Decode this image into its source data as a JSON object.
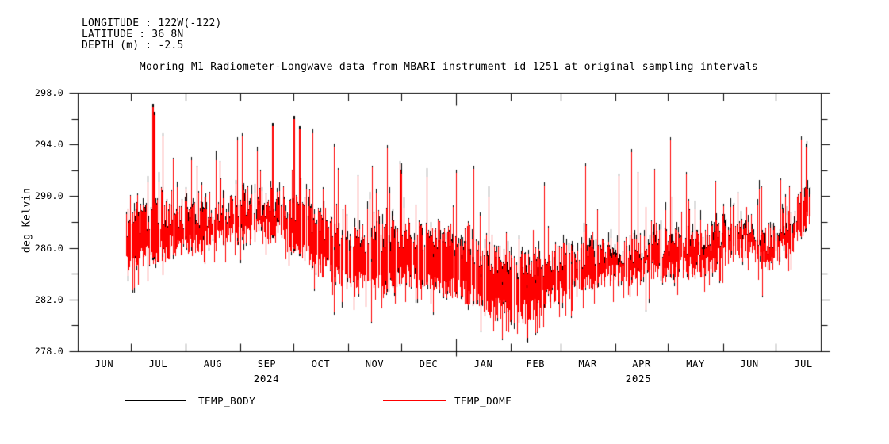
{
  "header": {
    "lines": [
      "LONGITUDE : 122W(-122)",
      "LATITUDE : 36 8N",
      "DEPTH (m) : -2.5"
    ]
  },
  "chart_data": {
    "type": "line",
    "title": "Mooring M1 Radiometer-Longwave data from MBARI instrument id 1251 at original sampling intervals",
    "ylabel": "deg Kelvin",
    "ylim": [
      278.0,
      298.0
    ],
    "ytick_values": [
      298.0,
      294.0,
      290.0,
      286.0,
      282.0,
      278.0
    ],
    "ytick_labels": [
      "298.0",
      "294.0",
      "290.0",
      "286.0",
      "282.0",
      "278.0"
    ],
    "ytick_interval_major": 4,
    "ytick_interval_minor": 2,
    "grid": false,
    "x_axis": {
      "start_date": "2024-06-01",
      "month_labels": [
        "JUN",
        "JUL",
        "AUG",
        "SEP",
        "OCT",
        "NOV",
        "DEC",
        "JAN",
        "FEB",
        "MAR",
        "APR",
        "MAY",
        "JUN",
        "JUL"
      ],
      "month_boundary_days": [
        0,
        30,
        61,
        92,
        122,
        153,
        183,
        214,
        245,
        273,
        304,
        334,
        365,
        395
      ],
      "year_labels": [
        "2024",
        "2025"
      ],
      "data_start": "2024-06-28",
      "data_end": "2025-07-18"
    },
    "legend_position": "bottom",
    "series": [
      {
        "name": "TEMP_BODY",
        "color": "#000000"
      },
      {
        "name": "TEMP_DOME",
        "color": "#ff0000"
      }
    ],
    "series_note": "TEMP_BODY (black) and TEMP_DOME (red) overlap almost everywhere; black peeks out slightly at spike tips. Values below are the visual envelope (deg Kelvin) read from the plot.",
    "envelope": [
      {
        "date": "2024-06-28",
        "day": 27,
        "low": 282.4,
        "high_typical": 289.0,
        "peak": 291.5
      },
      {
        "date": "2024-07-15",
        "day": 44,
        "low": 283.6,
        "high_typical": 289.8,
        "peak": 293.5
      },
      {
        "date": "2024-08-07",
        "day": 67,
        "low": 284.3,
        "high_typical": 289.8,
        "peak": 292.5
      },
      {
        "date": "2024-09-01",
        "day": 92,
        "low": 285.0,
        "high_typical": 290.3,
        "peak": 293.5
      },
      {
        "date": "2024-09-22",
        "day": 113,
        "low": 285.2,
        "high_typical": 290.8,
        "peak": 294.5
      },
      {
        "date": "2024-10-10",
        "day": 131,
        "low": 283.0,
        "high_typical": 289.5,
        "peak": 294.0
      },
      {
        "date": "2024-11-01",
        "day": 153,
        "low": 281.2,
        "high_typical": 288.0,
        "peak": 291.5
      },
      {
        "date": "2024-11-19",
        "day": 171,
        "low": 280.8,
        "high_typical": 288.0,
        "peak": 292.5
      },
      {
        "date": "2024-12-07",
        "day": 189,
        "low": 281.8,
        "high_typical": 288.3,
        "peak": 292.0
      },
      {
        "date": "2025-01-01",
        "day": 214,
        "low": 280.8,
        "high_typical": 287.5,
        "peak": 291.5
      },
      {
        "date": "2025-01-22",
        "day": 235,
        "low": 279.2,
        "high_typical": 286.2,
        "peak": 290.5
      },
      {
        "date": "2025-02-11",
        "day": 255,
        "low": 278.9,
        "high_typical": 285.8,
        "peak": 290.0
      },
      {
        "date": "2025-02-24",
        "day": 268,
        "low": 280.2,
        "high_typical": 286.3,
        "peak": 290.5
      },
      {
        "date": "2025-03-17",
        "day": 289,
        "low": 281.2,
        "high_typical": 286.8,
        "peak": 291.5
      },
      {
        "date": "2025-04-08",
        "day": 311,
        "low": 281.9,
        "high_typical": 287.0,
        "peak": 292.0
      },
      {
        "date": "2025-05-01",
        "day": 334,
        "low": 282.1,
        "high_typical": 287.6,
        "peak": 292.5
      },
      {
        "date": "2025-05-25",
        "day": 358,
        "low": 282.6,
        "high_typical": 287.8,
        "peak": 291.5
      },
      {
        "date": "2025-06-06",
        "day": 370,
        "low": 283.8,
        "high_typical": 289.3,
        "peak": 291.0
      },
      {
        "date": "2025-06-16",
        "day": 380,
        "low": 283.9,
        "high_typical": 288.6,
        "peak": 290.2
      },
      {
        "date": "2025-06-26",
        "day": 390,
        "low": 282.9,
        "high_typical": 287.8,
        "peak": 291.0
      },
      {
        "date": "2025-07-06",
        "day": 400,
        "low": 283.8,
        "high_typical": 288.8,
        "peak": 292.0
      },
      {
        "date": "2025-07-14",
        "day": 408,
        "low": 284.8,
        "high_typical": 290.2,
        "peak": 293.5
      },
      {
        "date": "2025-07-20",
        "day": 414,
        "low": 286.2,
        "high_typical": 292.3,
        "peak": 294.4
      }
    ],
    "notable_spikes": [
      {
        "date": "2024-07-13",
        "day": 42,
        "value": 296.9
      },
      {
        "date": "2024-07-14",
        "day": 43,
        "value": 296.3
      },
      {
        "date": "2024-07-19",
        "day": 48,
        "value": 294.6
      },
      {
        "date": "2024-08-04",
        "day": 64,
        "value": 292.8
      },
      {
        "date": "2024-08-30",
        "day": 90,
        "value": 294.3
      },
      {
        "date": "2024-09-02",
        "day": 93,
        "value": 294.6
      },
      {
        "date": "2024-09-19",
        "day": 110,
        "value": 295.4
      },
      {
        "date": "2024-10-01",
        "day": 122,
        "value": 296.0
      },
      {
        "date": "2024-10-04",
        "day": 125,
        "value": 295.2
      },
      {
        "date": "2024-10-12",
        "day": 133,
        "value": 294.9
      },
      {
        "date": "2024-10-24",
        "day": 145,
        "value": 293.8
      },
      {
        "date": "2024-11-23",
        "day": 175,
        "value": 293.7
      },
      {
        "date": "2024-11-30",
        "day": 182,
        "value": 292.5
      },
      {
        "date": "2025-01-01",
        "day": 214,
        "value": 291.8
      },
      {
        "date": "2025-01-11",
        "day": 224,
        "value": 292.1
      },
      {
        "date": "2025-02-20",
        "day": 264,
        "value": 290.8
      },
      {
        "date": "2025-03-15",
        "day": 287,
        "value": 292.3
      },
      {
        "date": "2025-04-10",
        "day": 313,
        "value": 293.4
      },
      {
        "date": "2025-05-02",
        "day": 335,
        "value": 294.3
      },
      {
        "date": "2025-07-15",
        "day": 409,
        "value": 294.4
      },
      {
        "date": "2025-07-18",
        "day": 412,
        "value": 293.8
      }
    ],
    "notable_dips": [
      {
        "date": "2024-10-24",
        "day": 145,
        "value": 281.0
      },
      {
        "date": "2024-11-14",
        "day": 166,
        "value": 280.3
      },
      {
        "date": "2024-12-19",
        "day": 201,
        "value": 281.0
      },
      {
        "date": "2025-01-15",
        "day": 228,
        "value": 279.6
      },
      {
        "date": "2025-01-27",
        "day": 240,
        "value": 279.0
      },
      {
        "date": "2025-02-10",
        "day": 254,
        "value": 278.9
      },
      {
        "date": "2025-02-15",
        "day": 259,
        "value": 279.4
      },
      {
        "date": "2025-03-07",
        "day": 279,
        "value": 280.7
      },
      {
        "date": "2025-04-18",
        "day": 321,
        "value": 281.2
      },
      {
        "date": "2025-06-23",
        "day": 387,
        "value": 282.3
      }
    ],
    "extremes": {
      "max": {
        "value": 296.9,
        "date": "2024-07-13"
      },
      "min": {
        "value": 278.9,
        "date": "2025-02-10"
      }
    }
  }
}
